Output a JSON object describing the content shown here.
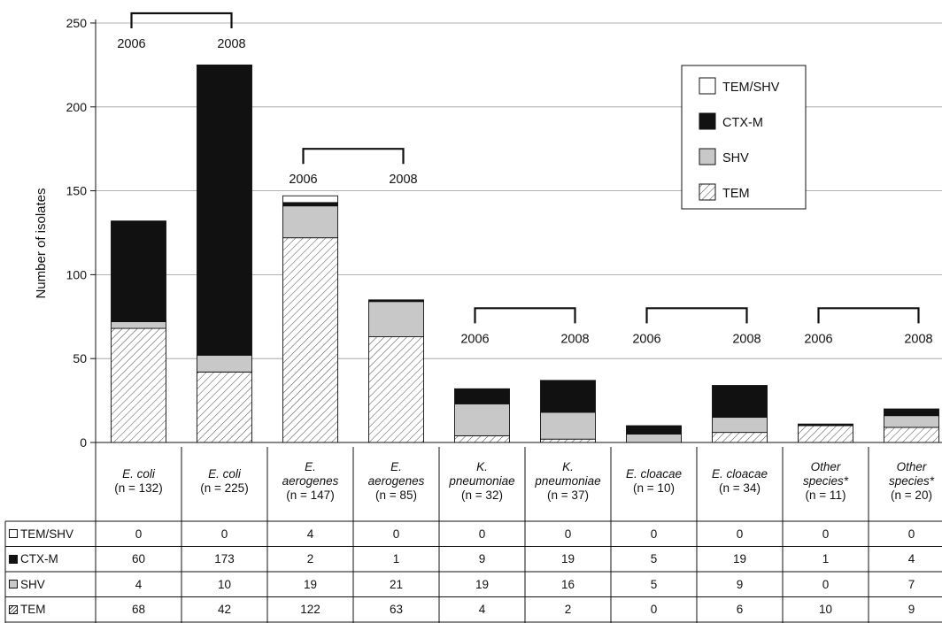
{
  "chart_data": {
    "type": "bar",
    "stacked": true,
    "ylabel": "Number of isolates",
    "ylim": [
      0,
      250
    ],
    "yticks": [
      0,
      50,
      100,
      150,
      200,
      250
    ],
    "grid": true,
    "legend_position": "top-right",
    "categories": [
      {
        "species": "E. coli",
        "n": "(n = 132)"
      },
      {
        "species": "E. coli",
        "n": "(n = 225)"
      },
      {
        "species": "E.|aerogenes",
        "n": "(n = 147)"
      },
      {
        "species": "E.|aerogenes",
        "n": "(n = 85)"
      },
      {
        "species": "K.|pneumoniae",
        "n": "(n = 32)"
      },
      {
        "species": "K.|pneumoniae",
        "n": "(n = 37)"
      },
      {
        "species": "E. cloacae",
        "n": "(n = 10)"
      },
      {
        "species": "E. cloacae",
        "n": "(n = 34)"
      },
      {
        "species": "Other|species*",
        "n": "(n = 11)"
      },
      {
        "species": "Other|species*",
        "n": "(n = 20)"
      }
    ],
    "year_groups": [
      {
        "first": 0,
        "last": 1,
        "left_label": "2006",
        "right_label": "2008"
      },
      {
        "first": 2,
        "last": 3,
        "left_label": "2006",
        "right_label": "2008"
      },
      {
        "first": 4,
        "last": 5,
        "left_label": "2006",
        "right_label": "2008"
      },
      {
        "first": 6,
        "last": 7,
        "left_label": "2006",
        "right_label": "2008"
      },
      {
        "first": 8,
        "last": 9,
        "left_label": "2006",
        "right_label": "2008"
      }
    ],
    "series": [
      {
        "name": "TEM",
        "pattern": "hatch",
        "values": [
          68,
          42,
          122,
          63,
          4,
          2,
          0,
          6,
          10,
          9
        ]
      },
      {
        "name": "SHV",
        "color": "#c8c8c8",
        "values": [
          4,
          10,
          19,
          21,
          19,
          16,
          5,
          9,
          0,
          7
        ]
      },
      {
        "name": "CTX-M",
        "color": "#111111",
        "values": [
          60,
          173,
          2,
          1,
          9,
          19,
          5,
          19,
          1,
          4
        ]
      },
      {
        "name": "TEM/SHV",
        "color": "#ffffff",
        "values": [
          0,
          0,
          4,
          0,
          0,
          0,
          0,
          0,
          0,
          0
        ]
      }
    ],
    "legend_order": [
      "TEM/SHV",
      "CTX-M",
      "SHV",
      "TEM"
    ],
    "table_order": [
      "TEM/SHV",
      "CTX-M",
      "SHV",
      "TEM"
    ]
  }
}
